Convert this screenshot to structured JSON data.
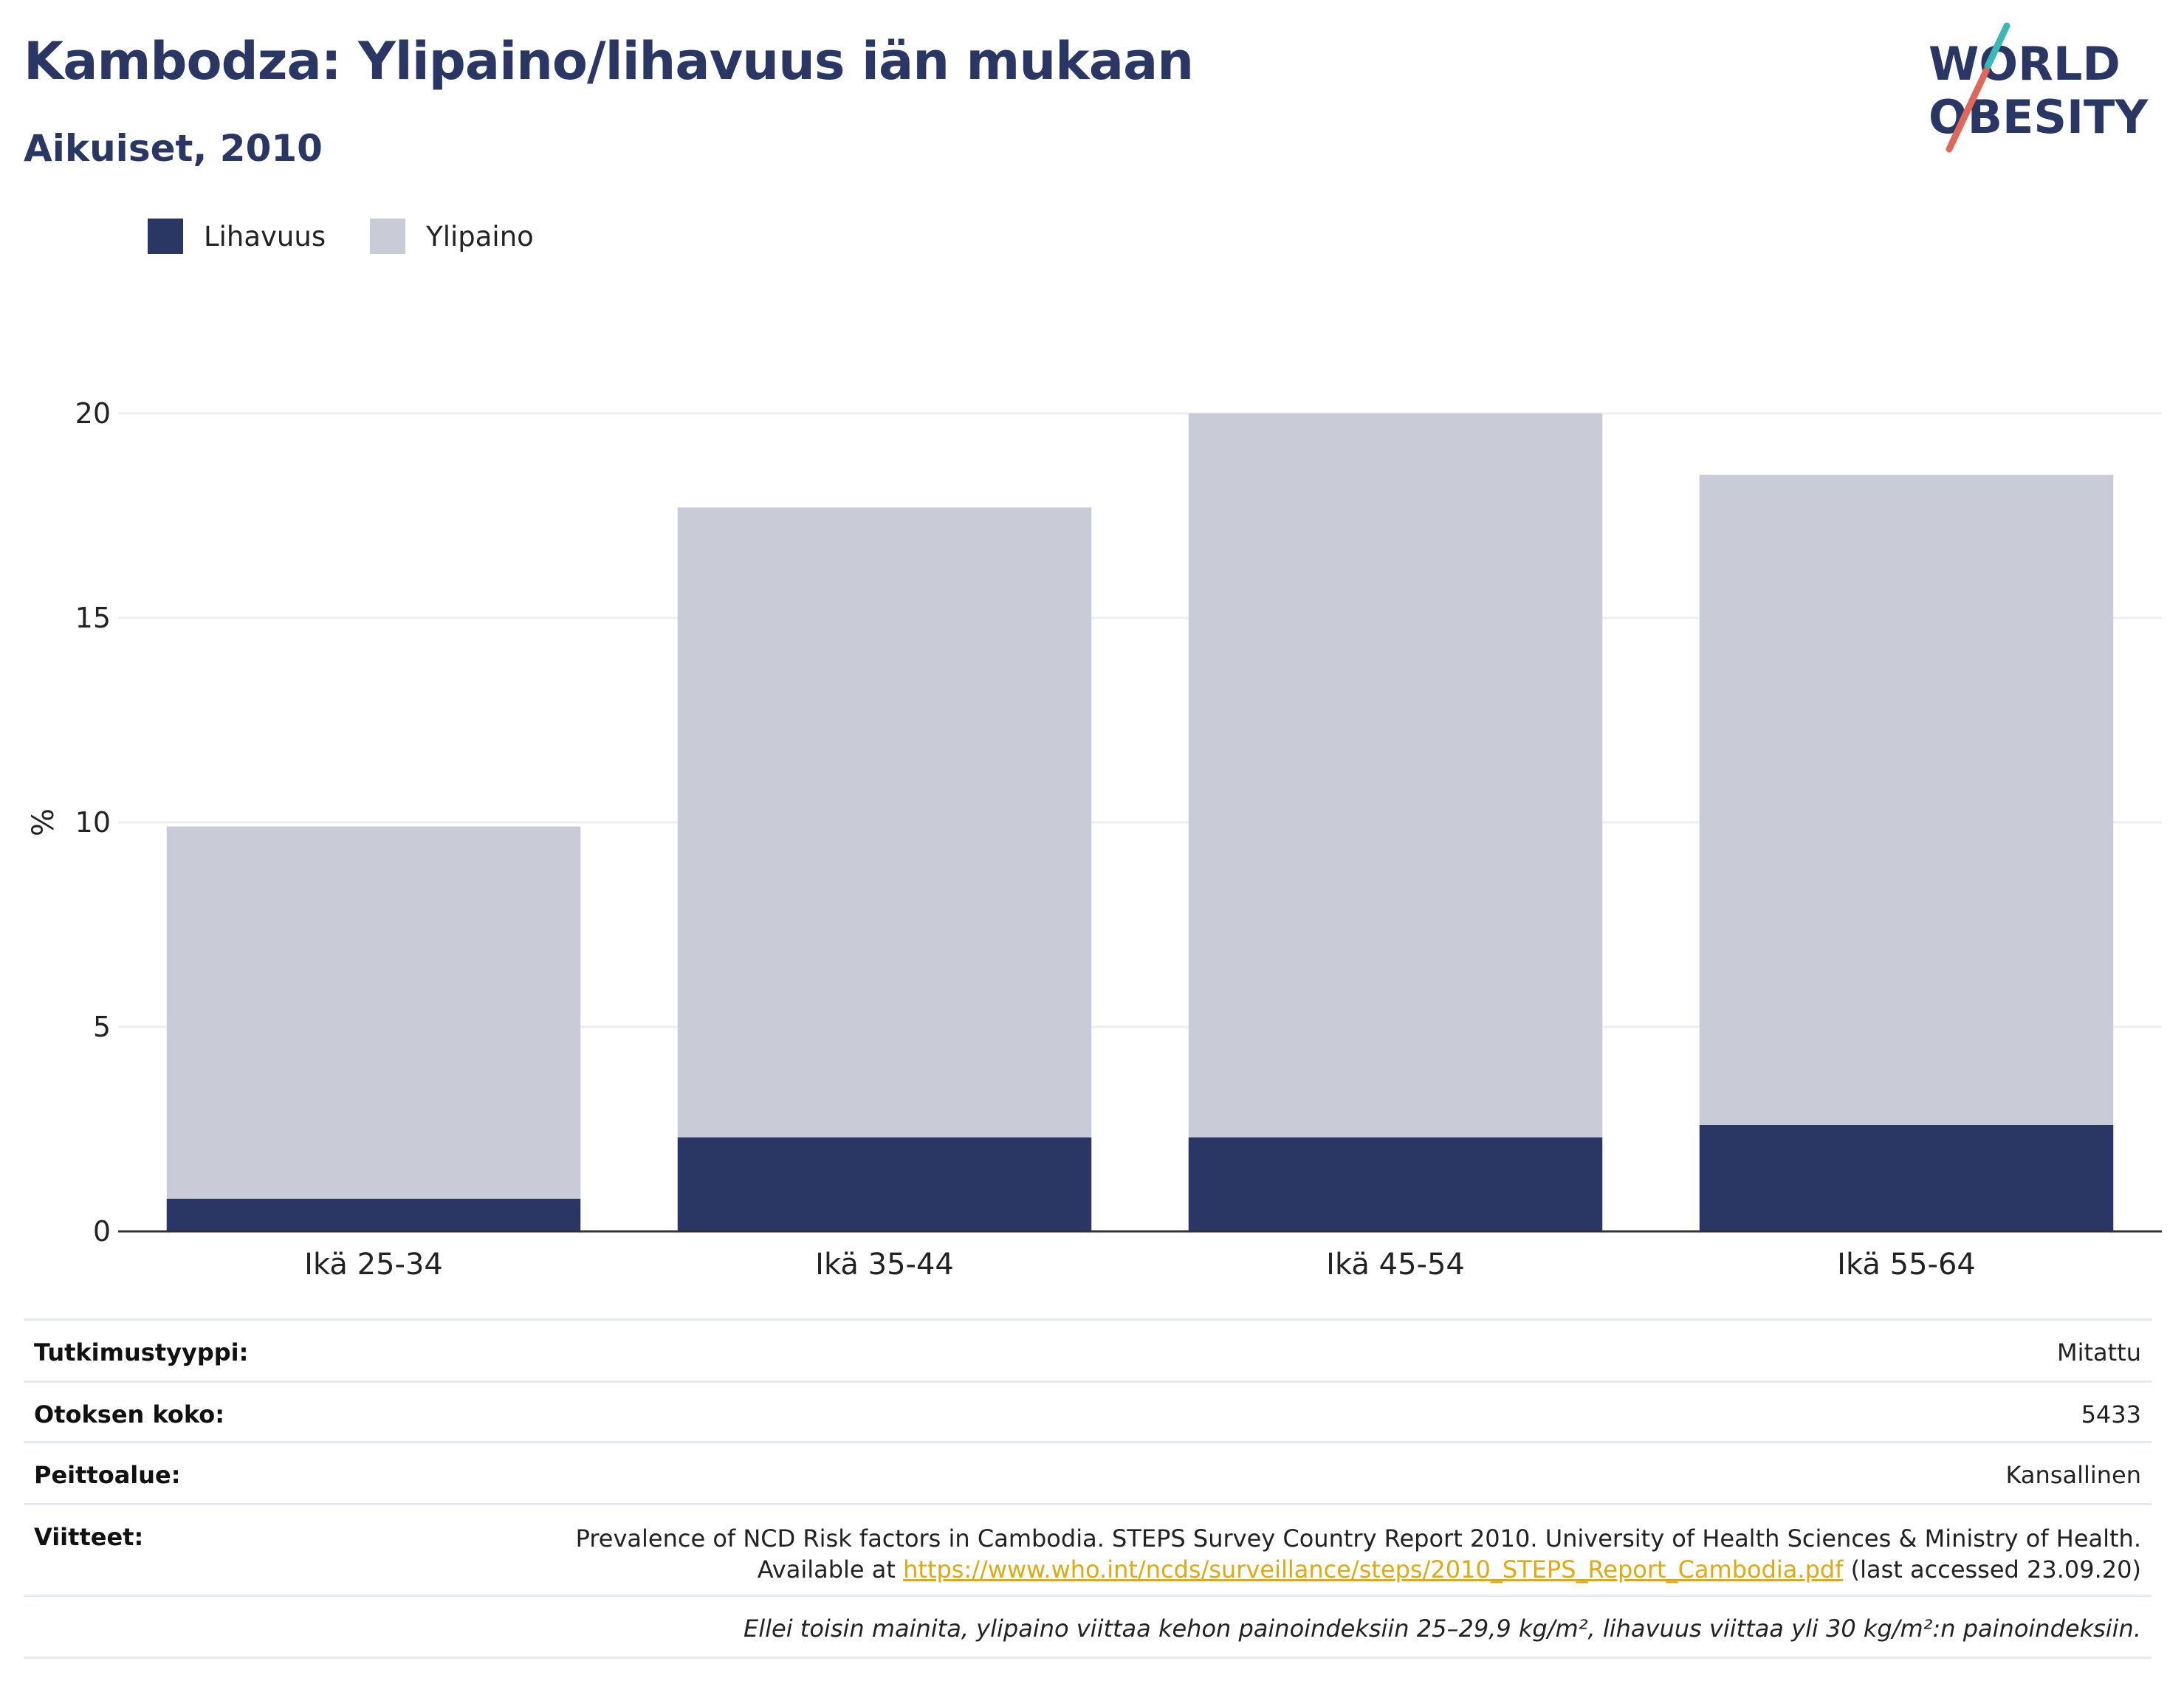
{
  "header": {
    "title": "Kambodza: Ylipaino/lihavuus iän mukaan",
    "subtitle": "Aikuiset, 2010"
  },
  "logo": {
    "line1": "WORLD",
    "line2": "OBESITY"
  },
  "legend": {
    "items": [
      {
        "label": "Lihavuus",
        "color": "#2a3664"
      },
      {
        "label": "Ylipaino",
        "color": "#c9cbd6"
      }
    ]
  },
  "chart_data": {
    "type": "bar",
    "stacked": true,
    "categories": [
      "Ikä 25-34",
      "Ikä 35-44",
      "Ikä 45-54",
      "Ikä 55-64"
    ],
    "series": [
      {
        "name": "Lihavuus",
        "values": [
          0.8,
          2.3,
          2.3,
          2.6
        ],
        "color": "#2a3664"
      },
      {
        "name": "Ylipaino",
        "values": [
          9.1,
          15.4,
          17.7,
          15.9
        ],
        "color": "#c9cbd6"
      }
    ],
    "ylabel": "%",
    "yticks": [
      0,
      5,
      10,
      15,
      20
    ],
    "ylim": [
      0,
      20
    ],
    "grid": true,
    "legend_position": "top-left"
  },
  "info": {
    "rows": [
      {
        "key": "Tutkimustyyppi:",
        "value": "Mitattu"
      },
      {
        "key": "Otoksen koko:",
        "value": "5433"
      },
      {
        "key": "Peittoalue:",
        "value": "Kansallinen"
      }
    ],
    "references": {
      "key": "Viitteet:",
      "line1": "Prevalence of NCD Risk factors in Cambodia. STEPS Survey Country Report 2010. University of Health Sciences & Ministry of Health.",
      "line2_prefix": "Available at ",
      "link": "https://www.who.int/ncds/surveillance/steps/2010_STEPS_Report_Cambodia.pdf",
      "line2_suffix": " (last accessed 23.09.20)"
    },
    "note": "Ellei toisin mainita, ylipaino viittaa kehon painoindeksiin 25–29,9 kg/m², lihavuus viittaa yli 30 kg/m²:n painoindeksiin."
  }
}
